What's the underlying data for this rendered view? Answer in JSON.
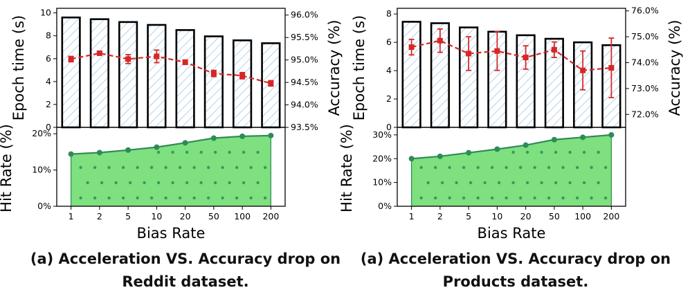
{
  "chart_data": [
    {
      "type": "bar+line",
      "bias_rates": [
        "1",
        "2",
        "5",
        "10",
        "20",
        "50",
        "100",
        "200"
      ],
      "epoch_time": {
        "ylabel": "Epoch time (s)",
        "ylim": [
          0,
          10.4
        ],
        "ticks": [
          0,
          2,
          4,
          6,
          8,
          10
        ],
        "tick_labels": [
          "0",
          "2",
          "4",
          "6",
          "8",
          "10"
        ],
        "values": [
          9.6,
          9.45,
          9.2,
          8.95,
          8.5,
          7.95,
          7.6,
          7.35
        ]
      },
      "accuracy": {
        "ylabel": "Accuracy (%)",
        "ylim": [
          93.5,
          96.15
        ],
        "ticks": [
          93.5,
          94.0,
          94.5,
          95.0,
          95.5,
          96.0
        ],
        "tick_labels": [
          "93.5%",
          "94.0%",
          "94.5%",
          "95.0%",
          "95.5%",
          "96.0%"
        ],
        "values": [
          95.02,
          95.15,
          95.02,
          95.08,
          94.95,
          94.7,
          94.65,
          94.48
        ],
        "errors": [
          0.06,
          0.03,
          0.1,
          0.14,
          0.05,
          0.07,
          0.07,
          0.06
        ]
      },
      "hit_rate": {
        "ylabel": "Hit Rate (%)",
        "ylim": [
          0,
          21
        ],
        "ticks": [
          0,
          10,
          20
        ],
        "tick_labels": [
          "0%",
          "10%",
          "20%"
        ],
        "values": [
          14.4,
          14.8,
          15.5,
          16.3,
          17.5,
          18.8,
          19.3,
          19.5
        ]
      },
      "xlabel": "Bias Rate",
      "caption_line1": "(a) Acceleration VS. Accuracy drop on",
      "caption_line2": "Reddit dataset."
    },
    {
      "type": "bar+line",
      "bias_rates": [
        "1",
        "2",
        "5",
        "10",
        "20",
        "50",
        "100",
        "200"
      ],
      "epoch_time": {
        "ylabel": "Epoch time (s)",
        "ylim": [
          0,
          8.4
        ],
        "ticks": [
          0,
          2,
          4,
          6,
          8
        ],
        "tick_labels": [
          "0",
          "2",
          "4",
          "6",
          "8"
        ],
        "values": [
          7.45,
          7.35,
          7.05,
          6.75,
          6.5,
          6.25,
          6.0,
          5.8
        ]
      },
      "accuracy": {
        "ylabel": "Accuracy (%)",
        "ylim": [
          71.5,
          76.1
        ],
        "ticks": [
          72.0,
          73.0,
          74.0,
          75.0,
          76.0
        ],
        "tick_labels": [
          "72.0%",
          "73.0%",
          "74.0%",
          "75.0%",
          "76.0%"
        ],
        "values": [
          74.6,
          74.85,
          74.35,
          74.45,
          74.2,
          74.5,
          73.7,
          73.8
        ],
        "errors": [
          0.3,
          0.45,
          0.65,
          0.75,
          0.45,
          0.3,
          0.75,
          1.15
        ]
      },
      "hit_rate": {
        "ylabel": "Hit Rate (%)",
        "ylim": [
          0,
          32
        ],
        "ticks": [
          0,
          10,
          20,
          30
        ],
        "tick_labels": [
          "0%",
          "10%",
          "20%",
          "30%"
        ],
        "values": [
          20.0,
          21.0,
          22.5,
          24.0,
          25.7,
          28.0,
          29.0,
          30.0
        ]
      },
      "xlabel": "Bias Rate",
      "caption_line1": "(a) Acceleration VS. Accuracy drop on",
      "caption_line2": "Products dataset."
    }
  ],
  "colors": {
    "bar_edge": "#000000",
    "hatch": "#9ec7e6",
    "accuracy_line": "#d62728",
    "hit_fill": "#7ee07e",
    "hit_line": "#2e8b57",
    "hit_dots": "#2e8b57"
  }
}
